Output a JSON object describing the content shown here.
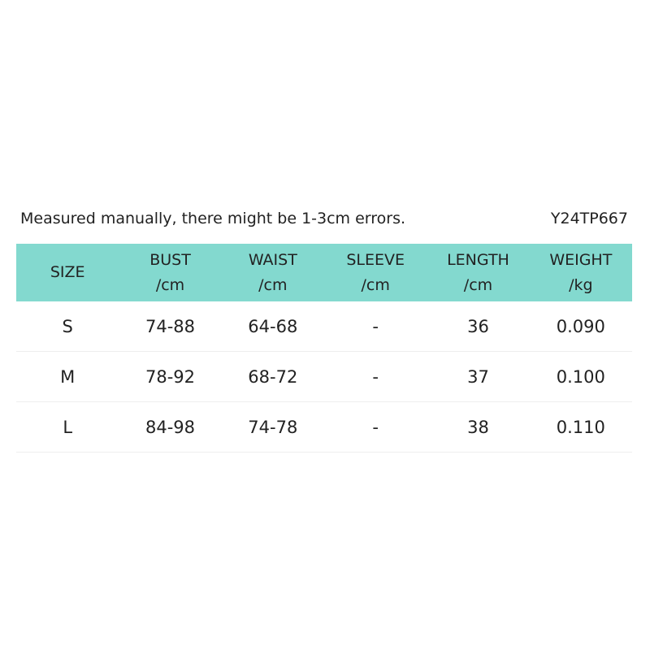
{
  "header": {
    "note": "Measured manually, there might be 1-3cm errors.",
    "code": "Y24TP667"
  },
  "table": {
    "columns": [
      [
        "SIZE"
      ],
      [
        "BUST",
        "/cm"
      ],
      [
        "WAIST",
        "/cm"
      ],
      [
        "SLEEVE",
        "/cm"
      ],
      [
        "LENGTH",
        "/cm"
      ],
      [
        "WEIGHT",
        "/kg"
      ]
    ],
    "rows": [
      [
        "S",
        "74-88",
        "64-68",
        "-",
        "36",
        "0.090"
      ],
      [
        "M",
        "78-92",
        "68-72",
        "-",
        "37",
        "0.100"
      ],
      [
        "L",
        "84-98",
        "74-78",
        "-",
        "38",
        "0.110"
      ]
    ]
  }
}
